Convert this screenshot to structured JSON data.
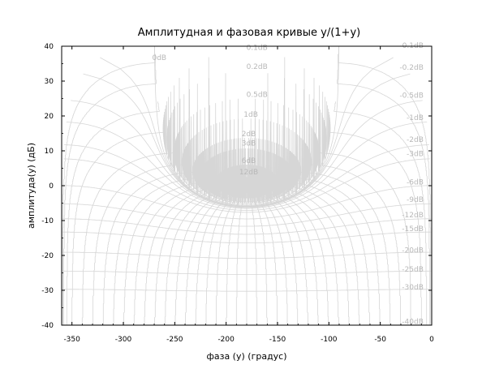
{
  "chart_data": {
    "type": "line",
    "title": "Амплитудная и фазовая кривые y/(1+y)",
    "xlabel": "фаза (y) (градус)",
    "ylabel": "амплитуда(y) (дБ)",
    "xlim": [
      -360,
      0
    ],
    "ylim": [
      -40,
      40
    ],
    "x_ticks": [
      "-350",
      "-300",
      "-250",
      "-200",
      "-150",
      "-100",
      "-50",
      "0"
    ],
    "y_ticks": [
      "40",
      "30",
      "20",
      "10",
      "0",
      "-10",
      "-20",
      "-30",
      "-40"
    ],
    "grid": true,
    "gain_contours_db": [
      -40,
      -30,
      -25,
      -20,
      -15,
      -12,
      -9,
      -6,
      -3,
      -2,
      -1,
      -0.5,
      -0.2,
      -0.1,
      0,
      0.1,
      0.2,
      0.5,
      1,
      2,
      3,
      6,
      12
    ],
    "phase_contours_deg": [
      -1,
      -2,
      -5,
      -10,
      -20,
      -30,
      -40,
      -50,
      -60,
      -70,
      -80,
      -90,
      -100,
      -110,
      -120,
      -130,
      -140,
      -150,
      -160,
      -170,
      -180,
      -190,
      -200,
      -210,
      -220,
      -230,
      -240,
      -250,
      -260,
      -270,
      -280,
      -290,
      -300,
      -310,
      -320,
      -330,
      -340,
      -350,
      -355,
      -358,
      -359
    ],
    "contour_labels": [
      {
        "text": "0dB",
        "x": -265,
        "y": 36
      },
      {
        "text": "0.1dB",
        "x": -170,
        "y": 39
      },
      {
        "text": "0.2dB",
        "x": -170,
        "y": 33.5
      },
      {
        "text": "0.5dB",
        "x": -170,
        "y": 25.5
      },
      {
        "text": "1dB",
        "x": -176,
        "y": 19.8
      },
      {
        "text": "2dB",
        "x": -178,
        "y": 14.2
      },
      {
        "text": "3dB",
        "x": -178,
        "y": 11.5
      },
      {
        "text": "6dB",
        "x": -178,
        "y": 6.5
      },
      {
        "text": "12dB",
        "x": -178,
        "y": 3.2
      },
      {
        "text": "-0.1dB",
        "x": -8,
        "y": 39.5
      },
      {
        "text": "-0.2dB",
        "x": -8,
        "y": 33.3
      },
      {
        "text": "-0.5dB",
        "x": -8,
        "y": 25.2
      },
      {
        "text": "-1dB",
        "x": -8,
        "y": 18.8
      },
      {
        "text": "-2dB",
        "x": -8,
        "y": 12.6
      },
      {
        "text": "-3dB",
        "x": -8,
        "y": 8.5
      },
      {
        "text": "-6dB",
        "x": -8,
        "y": 0.3
      },
      {
        "text": "-9dB",
        "x": -8,
        "y": -4.7
      },
      {
        "text": "-12dB",
        "x": -8,
        "y": -9.1
      },
      {
        "text": "-15dB",
        "x": -8,
        "y": -13
      },
      {
        "text": "-20dB",
        "x": -8,
        "y": -19.2
      },
      {
        "text": "-25dB",
        "x": -8,
        "y": -24.6
      },
      {
        "text": "-30dB",
        "x": -8,
        "y": -29.8
      },
      {
        "text": "-40dB",
        "x": -8,
        "y": -39.6
      }
    ]
  }
}
